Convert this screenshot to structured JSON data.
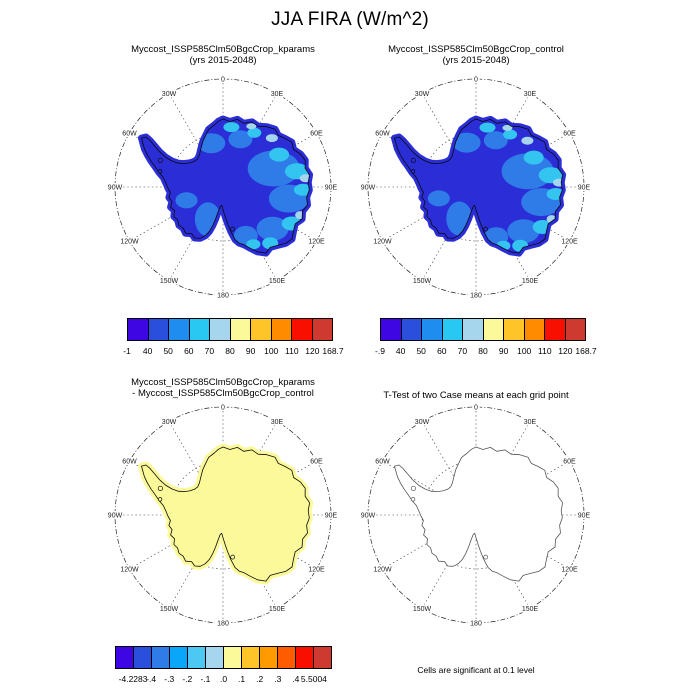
{
  "main_title": "JJA FIRA (W/m^2)",
  "colors": {
    "map_base_blue": "#2b2ed6",
    "map_mid_blue": "#2f7ce8",
    "map_cyan": "#33c4f0",
    "map_light_blue": "#a6d6ee",
    "map_pale_yellow": "#fbf99a",
    "coast_line": "#0a0a0a",
    "ttest_coast_line": "#555555",
    "graticule": "#333333"
  },
  "map_compass_labels": [
    "0",
    "30E",
    "60E",
    "90E",
    "120E",
    "150E",
    "180",
    "150W",
    "120W",
    "90W",
    "60W",
    "30W"
  ],
  "panels": {
    "kparams": {
      "title_line1": "Myccost_ISSP585Clm50BgcCrop_kparams",
      "title_line2": "(yrs 2015-2048)",
      "colorbar": {
        "label_mode": "edges",
        "colors": [
          "#3f06e4",
          "#2a4fdc",
          "#1f8cf0",
          "#28c8f2",
          "#a6d6ee",
          "#fbf99a",
          "#ffc428",
          "#ff8c00",
          "#f90f00",
          "#ce3a30"
        ],
        "labels": [
          "-1",
          "40",
          "50",
          "60",
          "70",
          "80",
          "90",
          "100",
          "110",
          "120",
          "168.7"
        ]
      }
    },
    "control": {
      "title_line1": "Myccost_ISSP585Clm50BgcCrop_control",
      "title_line2": "(yrs 2015-2048)",
      "colorbar": {
        "label_mode": "edges",
        "colors": [
          "#3f06e4",
          "#2a4fdc",
          "#1f8cf0",
          "#28c8f2",
          "#a6d6ee",
          "#fbf99a",
          "#ffc428",
          "#ff8c00",
          "#f90f00",
          "#ce3a30"
        ],
        "labels": [
          "-.9",
          "40",
          "50",
          "60",
          "70",
          "80",
          "90",
          "100",
          "110",
          "120",
          "168.7"
        ]
      }
    },
    "diff": {
      "title_line1": "Myccost_ISSP585Clm50BgcCrop_kparams",
      "title_line2": "- Myccost_ISSP585Clm50BgcCrop_control",
      "colorbar": {
        "label_mode": "interior",
        "colors": [
          "#3f06e4",
          "#2a4fdc",
          "#2f7ce8",
          "#0aa6fa",
          "#4cc8f2",
          "#a6d6ee",
          "#fbf99a",
          "#ffc428",
          "#ff9a00",
          "#ff5c00",
          "#f90f00",
          "#ce3a30"
        ],
        "labels": [
          "-4.2283",
          "-.4",
          "-.3",
          "-.2",
          "-.1",
          ".0",
          ".1",
          ".2",
          ".3",
          ".4",
          "5.5004"
        ]
      }
    },
    "ttest": {
      "title_line1": "T-Test of two Case means at each grid point",
      "footnote": "Cells are significant at 0.1 level"
    }
  },
  "chart_data": [
    {
      "type": "heatmap",
      "subtype": "antarctic_polar_stereographic_map",
      "title": "Myccost_ISSP585Clm50BgcCrop_kparams (yrs 2015-2048)",
      "variable": "JJA FIRA",
      "units": "W/m^2",
      "levels": [
        -1,
        40,
        50,
        60,
        70,
        80,
        90,
        100,
        110,
        120,
        168.7
      ],
      "min": -1,
      "max": 168.7,
      "legend_position": "below",
      "grid": "dashed 30-degree meridians, dashed latitude circle, dash-dot outer boundary",
      "dominant_values": "Antarctica mostly 40-60 W/m^2 (deep blue) with 60-80 W/m^2 cyan patches near coast"
    },
    {
      "type": "heatmap",
      "subtype": "antarctic_polar_stereographic_map",
      "title": "Myccost_ISSP585Clm50BgcCrop_control (yrs 2015-2048)",
      "variable": "JJA FIRA",
      "units": "W/m^2",
      "levels": [
        -0.9,
        40,
        50,
        60,
        70,
        80,
        90,
        100,
        110,
        120,
        168.7
      ],
      "min": -0.9,
      "max": 168.7,
      "legend_position": "below",
      "dominant_values": "nearly identical to kparams case: deep blue interior, cyan coastal patches"
    },
    {
      "type": "heatmap",
      "subtype": "antarctic_polar_stereographic_map",
      "title": "Myccost_ISSP585Clm50BgcCrop_kparams - Myccost_ISSP585Clm50BgcCrop_control",
      "variable": "JJA FIRA difference",
      "units": "W/m^2",
      "levels": [
        -4.2283,
        -0.4,
        -0.3,
        -0.2,
        -0.1,
        0.0,
        0.1,
        0.2,
        0.3,
        0.4,
        5.5004
      ],
      "min": -4.2283,
      "max": 5.5004,
      "legend_position": "below",
      "dominant_values": "entire continent in 0.0-0.1 bin (pale yellow), i.e. near-zero difference"
    },
    {
      "type": "map",
      "subtype": "antarctic_polar_stereographic_map",
      "title": "T-Test of two Case means at each grid point",
      "annotation": "Cells are significant at 0.1 level",
      "dominant_values": "no shaded cells (no grid points significant); coastline outline only"
    }
  ]
}
